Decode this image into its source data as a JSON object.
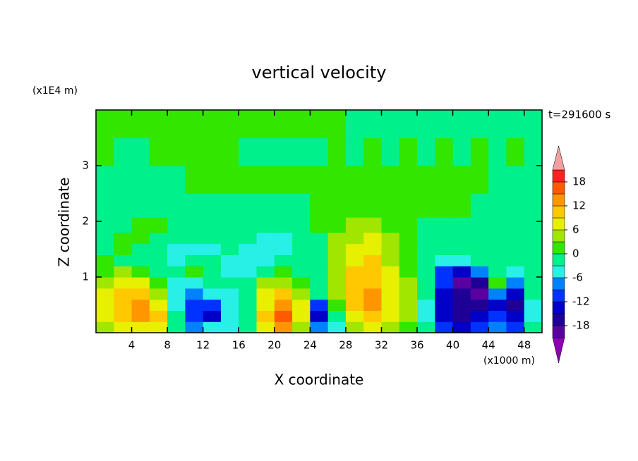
{
  "chart_data": {
    "type": "contour",
    "title": "vertical velocity",
    "x_label": "X coordinate",
    "y_label": "Z coordinate",
    "x_unit": "(x1000 m)",
    "y_unit": "(x1E4 m)",
    "time_label": "t=291600 s",
    "xlim": [
      0,
      50
    ],
    "ylim": [
      0,
      4
    ],
    "xticks": [
      4,
      8,
      12,
      16,
      20,
      24,
      28,
      32,
      36,
      40,
      44,
      48
    ],
    "yticks": [
      1,
      2,
      3
    ],
    "x": [
      1,
      3,
      5,
      7,
      9,
      11,
      13,
      15,
      17,
      19,
      21,
      23,
      25,
      27,
      29,
      31,
      33,
      35,
      37,
      39,
      41,
      43,
      45,
      47,
      49
    ],
    "y": [
      0.1,
      0.3,
      0.5,
      0.7,
      0.9,
      1.1,
      1.3,
      1.5,
      1.7,
      1.9,
      2.25,
      2.75,
      3.25,
      3.75
    ],
    "z": [
      [
        6,
        9,
        9,
        7,
        0,
        -6,
        -5,
        -4,
        -2,
        8,
        14,
        6,
        -6,
        -4,
        6,
        8,
        5,
        3,
        -2,
        -9,
        -14,
        -11,
        -8,
        -9,
        -2
      ],
      [
        8,
        12,
        13,
        10,
        -1,
        -9,
        -12,
        -5,
        -1,
        10,
        16,
        8,
        -12,
        -2,
        9,
        12,
        7,
        4,
        -3,
        -12,
        -16,
        -13,
        -10,
        -14,
        -3
      ],
      [
        8,
        12,
        13,
        8,
        -3,
        -11,
        -10,
        -4,
        0,
        9,
        13,
        7,
        -9,
        2,
        10,
        13,
        8,
        4,
        -3,
        -13,
        -17,
        -15,
        -12,
        -15,
        -3
      ],
      [
        7,
        11,
        11,
        6,
        -4,
        -7,
        -5,
        -3,
        -1,
        7,
        10,
        5,
        -2,
        4,
        11,
        13,
        8,
        4,
        -2,
        -12,
        -16,
        -18,
        -8,
        -12,
        -2
      ],
      [
        5,
        8,
        7,
        3,
        -5,
        -4,
        -2,
        -2,
        -2,
        4,
        6,
        3,
        -1,
        6,
        11,
        12,
        8,
        4,
        -2,
        -11,
        -18,
        -16,
        2,
        -8,
        -2
      ],
      [
        3,
        4,
        2,
        0,
        -2,
        1,
        -1,
        -3,
        -3,
        0,
        2,
        0,
        -2,
        6,
        10,
        11,
        7,
        3,
        -2,
        -9,
        -14,
        -6,
        -2,
        -3,
        -1
      ],
      [
        1,
        0,
        -1,
        -2,
        -3,
        -2,
        -2,
        -3,
        -3,
        -3,
        -2,
        -1,
        -1,
        5,
        9,
        10,
        6,
        3,
        -1,
        -4,
        -5,
        -2,
        -1,
        -1,
        -1
      ],
      [
        0,
        1,
        -2,
        -2,
        -3,
        -3,
        -3,
        -2,
        -3,
        -3,
        -4,
        -2,
        -1,
        5,
        8,
        8,
        6,
        3,
        -1,
        -1,
        -1,
        -1,
        -1,
        -1,
        -1
      ],
      [
        -1,
        1,
        1,
        -1,
        -2,
        -2,
        -2,
        -2,
        -2,
        -3,
        -3,
        -2,
        0,
        4,
        6,
        7,
        5,
        2,
        -1,
        -1,
        -1,
        -1,
        -1,
        -1,
        -1
      ],
      [
        -1,
        -1,
        1,
        1,
        -1,
        -1,
        -1,
        -1,
        -1,
        -1,
        -1,
        -1,
        1,
        3,
        5,
        5,
        3,
        2,
        -1,
        -1,
        -1,
        -1,
        -1,
        -1,
        -1
      ],
      [
        -1,
        -1,
        -1,
        -1,
        -1,
        -1,
        -1,
        -1,
        -1,
        -1,
        -1,
        -1,
        1,
        1,
        1,
        1,
        1,
        1,
        1,
        1,
        1,
        -1,
        -1,
        -1,
        -1
      ],
      [
        -1,
        -1,
        -1,
        -1,
        -1,
        1,
        1,
        1,
        1,
        1,
        1,
        1,
        1,
        1,
        1,
        1,
        1,
        1,
        1,
        1,
        1,
        1,
        -1,
        -1,
        -1
      ],
      [
        1,
        -1,
        -1,
        1,
        1,
        1,
        1,
        1,
        -1,
        -1,
        -1,
        -1,
        -1,
        1,
        -1,
        1,
        -1,
        1,
        -1,
        1,
        -1,
        1,
        -1,
        1,
        -1
      ],
      [
        1,
        1,
        1,
        1,
        1,
        1,
        1,
        1,
        1,
        1,
        1,
        1,
        1,
        1,
        -1,
        -1,
        -1,
        -1,
        -1,
        -1,
        -1,
        -1,
        -1,
        -1,
        -1
      ]
    ],
    "colorbar": {
      "levels": [
        -21,
        -18,
        -15,
        -12,
        -9,
        -6,
        -3,
        0,
        3,
        6,
        9,
        12,
        15,
        18,
        21
      ],
      "colors": [
        "#8c00b4",
        "#5a00a0",
        "#1e0096",
        "#0000c8",
        "#0032ff",
        "#0082ff",
        "#28f0e6",
        "#00f08c",
        "#32e600",
        "#a0e600",
        "#e6f000",
        "#ffc800",
        "#ff9600",
        "#ff5a00",
        "#ff2020",
        "#f0a0a0"
      ],
      "ticks": [
        -18,
        -12,
        -6,
        0,
        6,
        12,
        18
      ]
    }
  }
}
